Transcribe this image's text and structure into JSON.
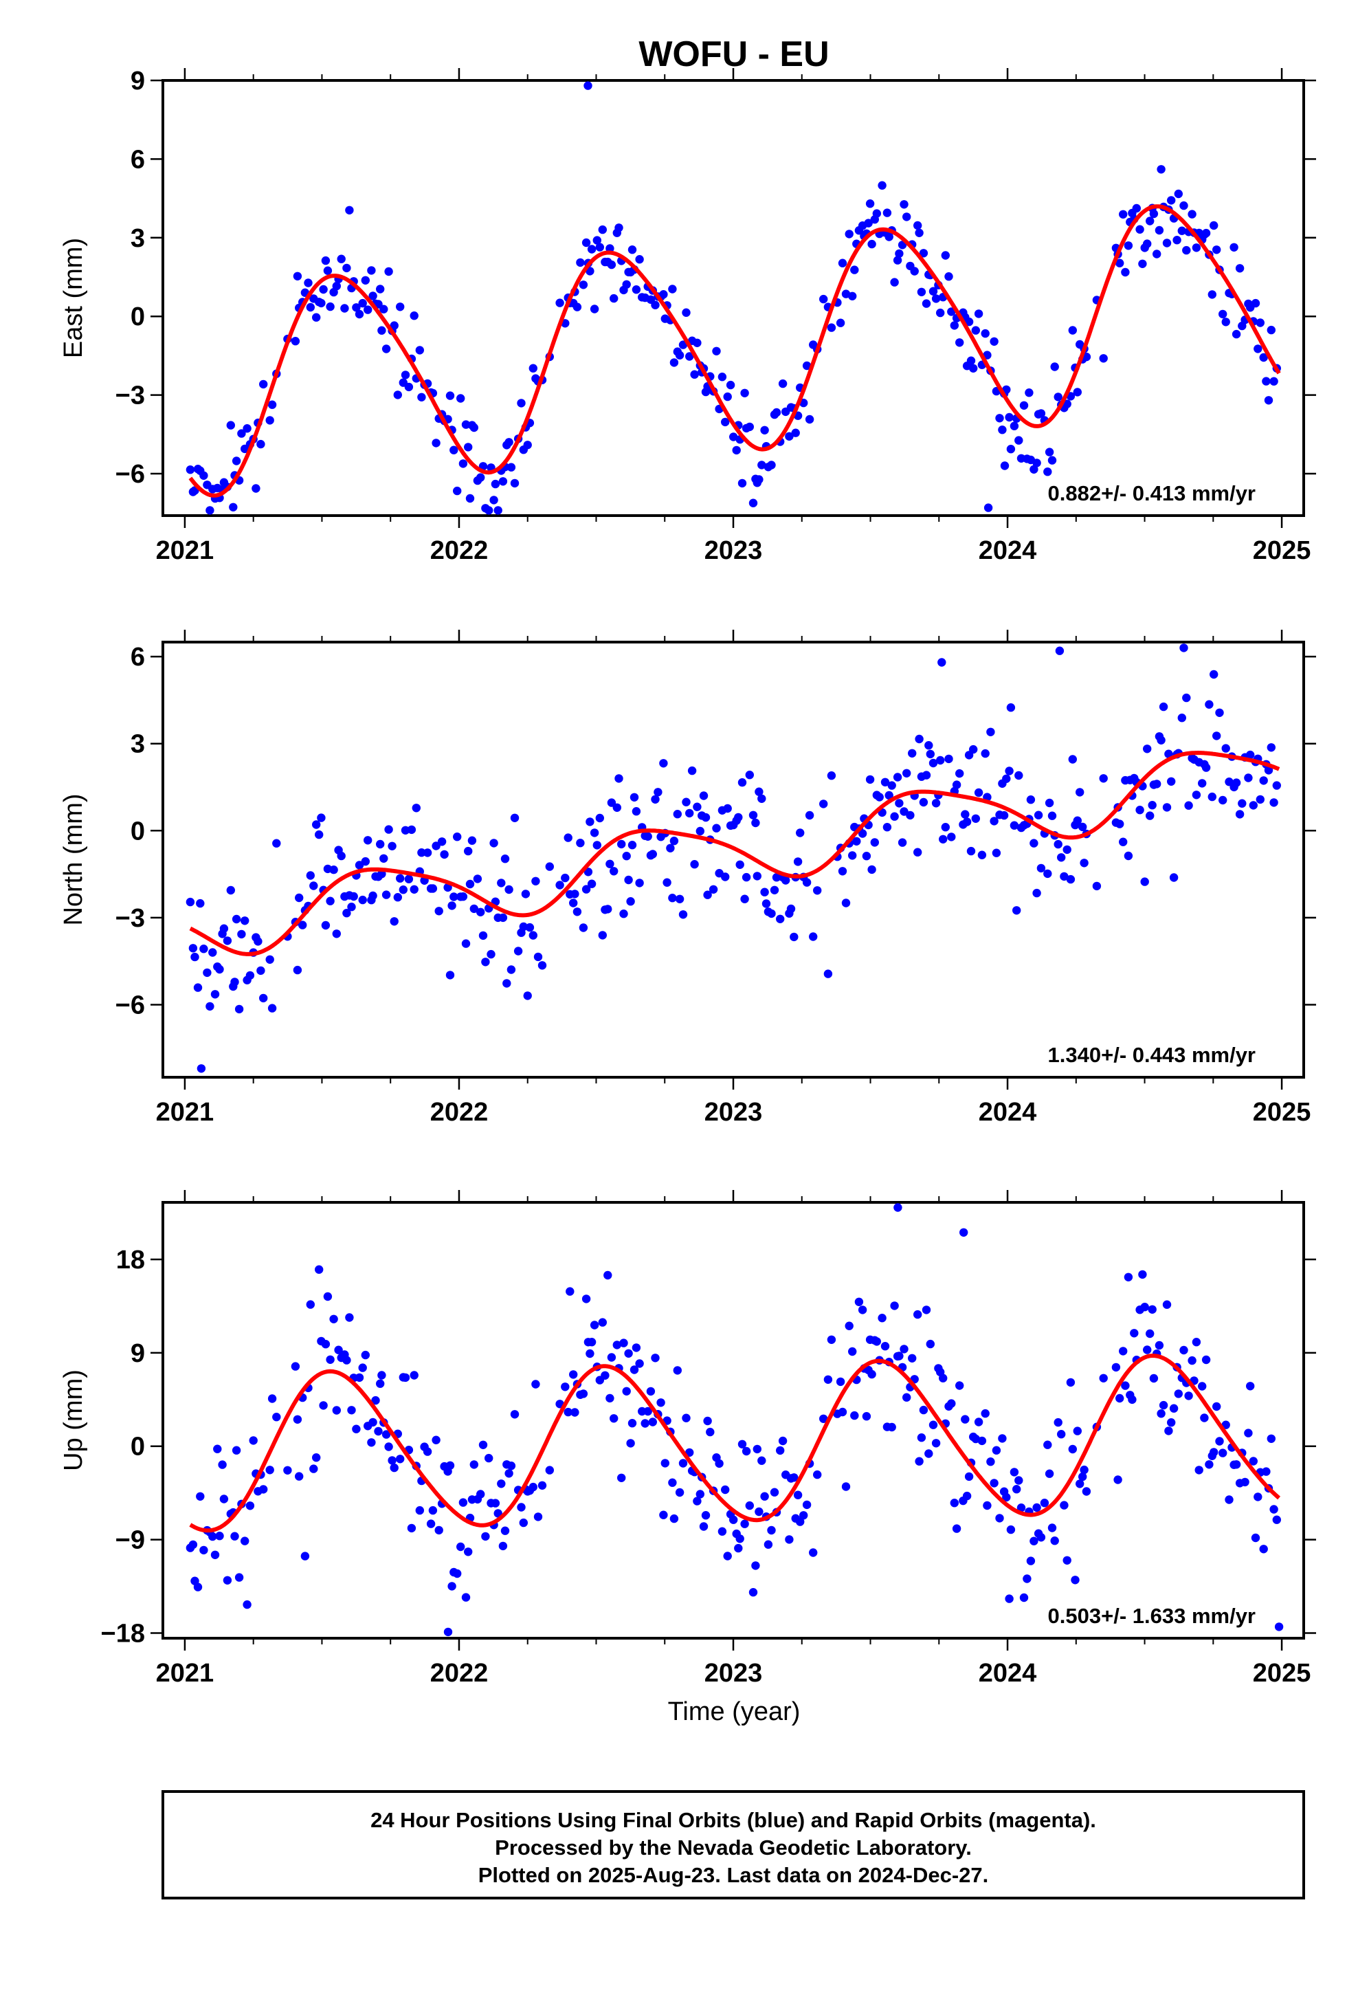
{
  "title": "WOFU - EU",
  "xlabel": "Time (year)",
  "footer": {
    "line1": "24 Hour Positions Using Final Orbits (blue) and Rapid Orbits (magenta).",
    "line2": "Processed by the Nevada Geodetic Laboratory.",
    "line3": "Plotted on 2025-Aug-23. Last data on 2024-Dec-27."
  },
  "colors": {
    "points": "#0000ff",
    "fit": "#ff0000",
    "frame": "#000000"
  },
  "chart_data": [
    {
      "type": "scatter",
      "component": "east",
      "ylabel": "East (mm)",
      "rate_text": "0.882+/- 0.413 mm/yr",
      "xlim": [
        2020.92,
        2025.08
      ],
      "ylim": [
        -7.6,
        9.0
      ],
      "x_ticks": [
        "2021",
        "2022",
        "2023",
        "2024",
        "2025"
      ],
      "y_ticks": [
        -6,
        -3,
        0,
        3,
        6,
        9
      ],
      "fit": {
        "rate": 0.882,
        "offset": -1.0,
        "annual": [
          -3.4,
          -1.9
        ],
        "semiannual": [
          0.3,
          -0.4
        ],
        "t0": 2023.0
      },
      "scatter_sd": 0.9,
      "outliers": [
        [
          2022.47,
          8.8
        ],
        [
          2023.93,
          -7.3
        ],
        [
          2023.99,
          -5.7
        ]
      ],
      "series": [
        {
          "name": "Final Orbits",
          "color": "#0000ff"
        },
        {
          "name": "Rapid Orbits",
          "color": "#ff00ff"
        }
      ]
    },
    {
      "type": "scatter",
      "component": "north",
      "ylabel": "North (mm)",
      "rate_text": "1.340+/- 0.443 mm/yr",
      "xlim": [
        2020.92,
        2025.08
      ],
      "ylim": [
        -8.5,
        6.5
      ],
      "x_ticks": [
        "2021",
        "2022",
        "2023",
        "2024",
        "2025"
      ],
      "y_ticks": [
        -6,
        -3,
        0,
        3,
        6
      ],
      "fit": {
        "rate": 1.34,
        "offset": -0.6,
        "annual": [
          -0.2,
          -1.1
        ],
        "semiannual": [
          0.2,
          0.1
        ],
        "t0": 2023.0
      },
      "scatter_sd": 1.3,
      "outliers": [
        [
          2021.06,
          -8.2
        ],
        [
          2023.76,
          5.8
        ],
        [
          2024.19,
          6.2
        ]
      ],
      "series": [
        {
          "name": "Final Orbits",
          "color": "#0000ff"
        },
        {
          "name": "Rapid Orbits",
          "color": "#ff00ff"
        }
      ]
    },
    {
      "type": "scatter",
      "component": "up",
      "ylabel": "Up (mm)",
      "rate_text": "0.503+/- 1.633 mm/yr",
      "xlim": [
        2020.92,
        2025.08
      ],
      "ylim": [
        -18.5,
        23.5
      ],
      "x_ticks": [
        "2021",
        "2022",
        "2023",
        "2024",
        "2025"
      ],
      "y_ticks": [
        -18,
        -9,
        0,
        9,
        18
      ],
      "fit": {
        "rate": 0.503,
        "offset": 0.2,
        "annual": [
          -7.0,
          -2.5
        ],
        "semiannual": [
          0.6,
          -0.4
        ],
        "t0": 2023.0
      },
      "scatter_sd": 4.0,
      "outliers": [
        [
          2023.6,
          23.0
        ],
        [
          2023.84,
          20.6
        ],
        [
          2021.96,
          -17.9
        ],
        [
          2024.99,
          -17.4
        ]
      ],
      "series": [
        {
          "name": "Final Orbits",
          "color": "#0000ff"
        },
        {
          "name": "Rapid Orbits",
          "color": "#ff00ff"
        }
      ]
    }
  ]
}
